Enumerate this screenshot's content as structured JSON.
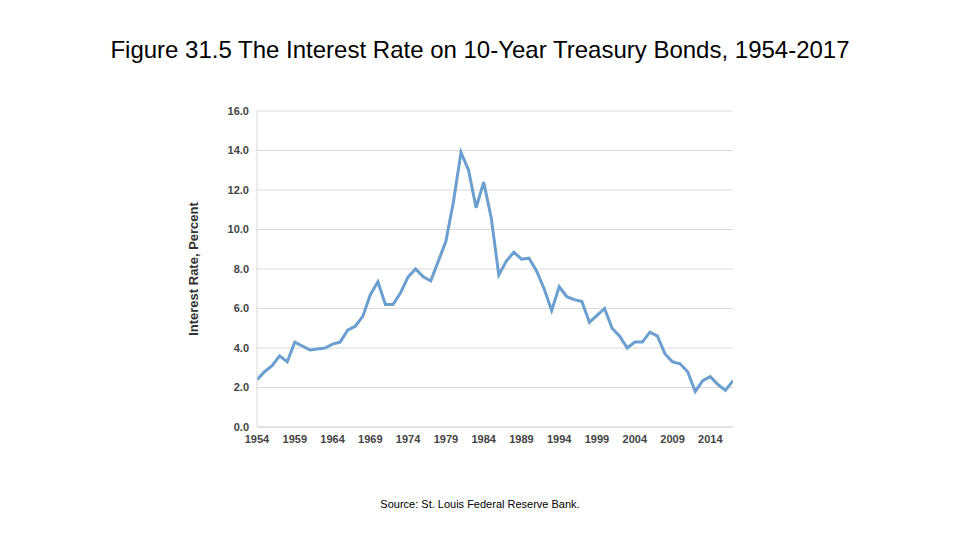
{
  "chart_data": {
    "type": "line",
    "title": "Figure 31.5 The Interest Rate on 10-Year Treasury Bonds, 1954-2017",
    "y_label": "Interest Rate, Percent",
    "source": "Source: St. Louis Federal Reserve Bank.",
    "x": [
      1954,
      1955,
      1956,
      1957,
      1958,
      1959,
      1960,
      1961,
      1962,
      1963,
      1964,
      1965,
      1966,
      1967,
      1968,
      1969,
      1970,
      1971,
      1972,
      1973,
      1974,
      1975,
      1976,
      1977,
      1978,
      1979,
      1980,
      1981,
      1982,
      1983,
      1984,
      1985,
      1986,
      1987,
      1988,
      1989,
      1990,
      1991,
      1992,
      1993,
      1994,
      1995,
      1996,
      1997,
      1998,
      1999,
      2000,
      2001,
      2002,
      2003,
      2004,
      2005,
      2006,
      2007,
      2008,
      2009,
      2010,
      2011,
      2012,
      2013,
      2014,
      2015,
      2016,
      2017
    ],
    "values": [
      2.4,
      2.8,
      3.1,
      3.6,
      3.3,
      4.3,
      4.1,
      3.9,
      3.95,
      4.0,
      4.2,
      4.3,
      4.9,
      5.1,
      5.6,
      6.7,
      7.35,
      6.2,
      6.2,
      6.8,
      7.6,
      8.0,
      7.6,
      7.4,
      8.4,
      9.4,
      11.4,
      13.9,
      13.0,
      11.1,
      12.4,
      10.6,
      7.7,
      8.4,
      8.85,
      8.5,
      8.55,
      7.9,
      7.0,
      5.9,
      7.1,
      6.6,
      6.45,
      6.35,
      5.3,
      5.65,
      6.0,
      5.0,
      4.6,
      4.0,
      4.3,
      4.3,
      4.8,
      4.6,
      3.7,
      3.3,
      3.2,
      2.8,
      1.8,
      2.35,
      2.55,
      2.15,
      1.85,
      2.35
    ],
    "color": "#6a9fcf",
    "xlim": [
      1954,
      2017
    ],
    "xticks": [
      1954,
      1959,
      1964,
      1969,
      1974,
      1979,
      1984,
      1989,
      1994,
      1999,
      2004,
      2009,
      2014
    ],
    "ylim": [
      0,
      16
    ],
    "yticks": [
      {
        "value": 0,
        "label": "0.0"
      },
      {
        "value": 2,
        "label": "2.0"
      },
      {
        "value": 4,
        "label": "4.0"
      },
      {
        "value": 6,
        "label": "6.0"
      },
      {
        "value": 8,
        "label": "8.0"
      },
      {
        "value": 10,
        "label": "10.0"
      },
      {
        "value": 12,
        "label": "12.0"
      },
      {
        "value": 14,
        "label": "14.0"
      },
      {
        "value": 16,
        "label": "16.0"
      }
    ],
    "grid": true
  }
}
